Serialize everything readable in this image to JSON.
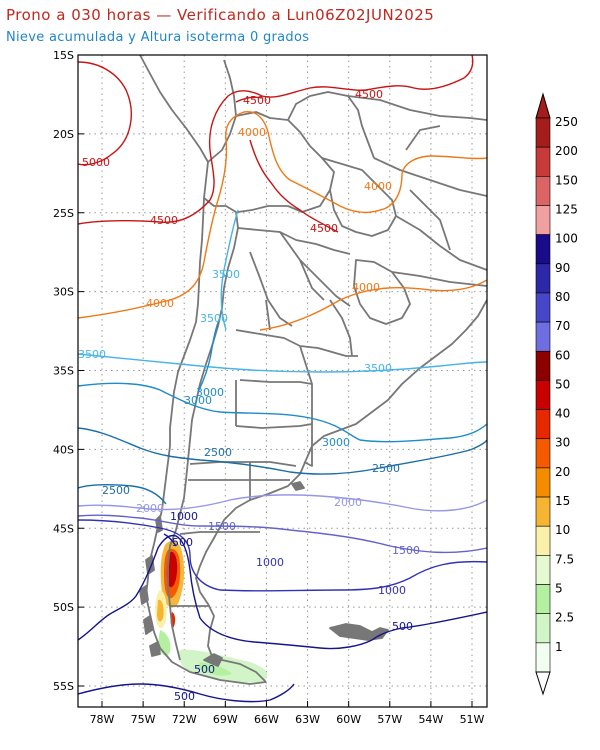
{
  "header": {
    "title": "Prono a 030 horas — Verificando a Lun06Z02JUN2025",
    "subtitle": "Nieve acumulada y Altura isoterma 0 grados"
  },
  "axes": {
    "lat_labels": [
      "15S",
      "20S",
      "25S",
      "30S",
      "35S",
      "40S",
      "45S",
      "50S",
      "55S"
    ],
    "lon_labels": [
      "78W",
      "75W",
      "72W",
      "69W",
      "66W",
      "63W",
      "60W",
      "57W",
      "54W",
      "51W"
    ]
  },
  "colorbar": {
    "labels": [
      "250",
      "200",
      "150",
      "125",
      "100",
      "90",
      "80",
      "70",
      "60",
      "50",
      "40",
      "30",
      "20",
      "15",
      "10",
      "7.5",
      "5",
      "2.5",
      "1"
    ],
    "colors": [
      "#a51c1c",
      "#c83a3a",
      "#dc6464",
      "#f0a0a0",
      "#1a0a8c",
      "#2c28a8",
      "#4646c8",
      "#6e6ee0",
      "#8c0000",
      "#c80000",
      "#e62800",
      "#f55a00",
      "#f58c00",
      "#f5b432",
      "#faf0aa",
      "#e6fad2",
      "#b4f0a0",
      "#d2f5c8",
      "#f0fff0"
    ]
  },
  "contours": {
    "c5000": "5000",
    "c4500": "4500",
    "c4000": "4000",
    "c3500": "3500",
    "c3000": "3000",
    "c2500": "2500",
    "c2000": "2000",
    "c1500": "1500",
    "c1000": "1000",
    "c500": "500"
  },
  "colors": {
    "c5000": "#c81414",
    "c4500": "#c81414",
    "c4000": "#f07814",
    "c3500": "#46b4e6",
    "c3000": "#1e8cc8",
    "c2500": "#1a6ea8",
    "c2000": "#9696e6",
    "c1500": "#6464c8",
    "c1000": "#3232b4",
    "c500": "#14148c",
    "border": "#777777"
  }
}
